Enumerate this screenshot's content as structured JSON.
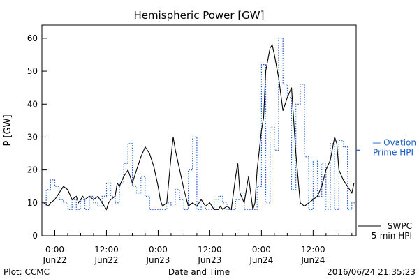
{
  "chart_data": {
    "type": "line",
    "title": "Hemispheric Power [GW]",
    "xlabel": "Date and Time",
    "ylabel": "P [GW]",
    "ylim": [
      0,
      64
    ],
    "yticks": [
      0,
      10,
      20,
      30,
      40,
      50,
      60
    ],
    "xlim_hours": [
      -3,
      70
    ],
    "xticks": [
      {
        "h": 0,
        "time": "0:00",
        "date": "Jun22"
      },
      {
        "h": 12,
        "time": "12:00",
        "date": "Jun22"
      },
      {
        "h": 24,
        "time": "0:00",
        "date": "Jun23"
      },
      {
        "h": 36,
        "time": "12:00",
        "date": "Jun23"
      },
      {
        "h": 48,
        "time": "0:00",
        "date": "Jun24"
      },
      {
        "h": 60,
        "time": "12:00",
        "date": "Jun24"
      }
    ],
    "grid": false,
    "series": [
      {
        "name": "SWPC 5-min HPI",
        "legend_lines": [
          "SWPC",
          "5-min HPI"
        ],
        "color": "#000000",
        "style": "solid",
        "x_hours": [
          -2.5,
          -1.5,
          -1,
          0,
          1,
          2,
          3,
          4,
          5,
          5.5,
          6,
          6.5,
          7,
          8,
          9,
          10,
          11,
          12,
          12.5,
          13,
          14,
          14.5,
          15,
          16,
          17,
          18,
          19,
          20,
          21,
          22,
          23,
          24,
          24.5,
          25,
          26,
          27,
          27.5,
          28,
          29,
          30,
          31,
          32,
          33,
          34,
          35,
          36,
          37,
          38,
          38.5,
          39,
          40,
          41,
          42,
          42.5,
          43,
          44,
          45,
          46,
          46.5,
          47,
          48,
          48.5,
          49,
          50,
          50.5,
          51,
          52,
          53,
          54,
          55,
          56,
          57,
          58,
          59,
          60,
          61,
          62,
          63,
          64,
          65,
          65.5,
          66,
          67,
          68,
          69,
          69.5
        ],
        "values": [
          10,
          9,
          10,
          11,
          13,
          15,
          14,
          11,
          12,
          10,
          11,
          12,
          11,
          12,
          11,
          12,
          10,
          8,
          10,
          11,
          12,
          16,
          15,
          18,
          20,
          16,
          20,
          24,
          27,
          25,
          21,
          15,
          11,
          9,
          10,
          24,
          30,
          26,
          20,
          14,
          9,
          10,
          9,
          11,
          9,
          10,
          8,
          8,
          9,
          8,
          9,
          8,
          18,
          22,
          13,
          10,
          18,
          8,
          10,
          20,
          32,
          36,
          50,
          57,
          58,
          55,
          48,
          38,
          42,
          45,
          25,
          10,
          9,
          10,
          11,
          12,
          15,
          20,
          23,
          30,
          28,
          20,
          17,
          15,
          13,
          16
        ],
        "rendered": [
          {
            "h": 49.7,
            "v": 50
          }
        ]
      },
      {
        "name": "Ovation Prime HPI",
        "legend_lines": [
          "— Ovation",
          "Prime HPI"
        ],
        "color": "#1c5ec8",
        "style": "dotted-step",
        "x_hours": [
          -3,
          -2,
          -1,
          0,
          1,
          2,
          3,
          4,
          5,
          6,
          7,
          8,
          9,
          10,
          11,
          12,
          13,
          14,
          15,
          16,
          17,
          18,
          19,
          20,
          21,
          22,
          23,
          24,
          25,
          26,
          27,
          28,
          29,
          30,
          31,
          32,
          33,
          34,
          35,
          36,
          37,
          38,
          39,
          40,
          41,
          42,
          43,
          44,
          45,
          46,
          47,
          48,
          49,
          50,
          51,
          52,
          53,
          54,
          55,
          56,
          57,
          58,
          59,
          60,
          61,
          62,
          63,
          64,
          65,
          66,
          67,
          68,
          69
        ],
        "values": [
          9,
          14,
          17,
          15,
          11,
          10,
          8,
          11,
          8,
          11,
          8,
          12,
          10,
          9,
          12,
          16,
          12,
          10,
          16,
          22,
          28,
          15,
          13,
          18,
          12,
          8,
          8,
          8,
          8,
          10,
          9,
          14,
          11,
          8,
          20,
          30,
          8,
          9,
          8,
          8,
          11,
          12,
          10,
          8,
          8,
          11,
          13,
          8,
          8,
          8,
          15,
          52,
          10,
          33,
          26,
          60,
          46,
          42,
          14,
          40,
          46,
          24,
          8,
          23,
          12,
          22,
          8,
          28,
          8,
          29,
          27,
          8,
          10
        ]
      }
    ]
  },
  "footer": {
    "plot_label": "Plot: CCMC",
    "timestamp": "2016/06/24 21:35:23"
  }
}
